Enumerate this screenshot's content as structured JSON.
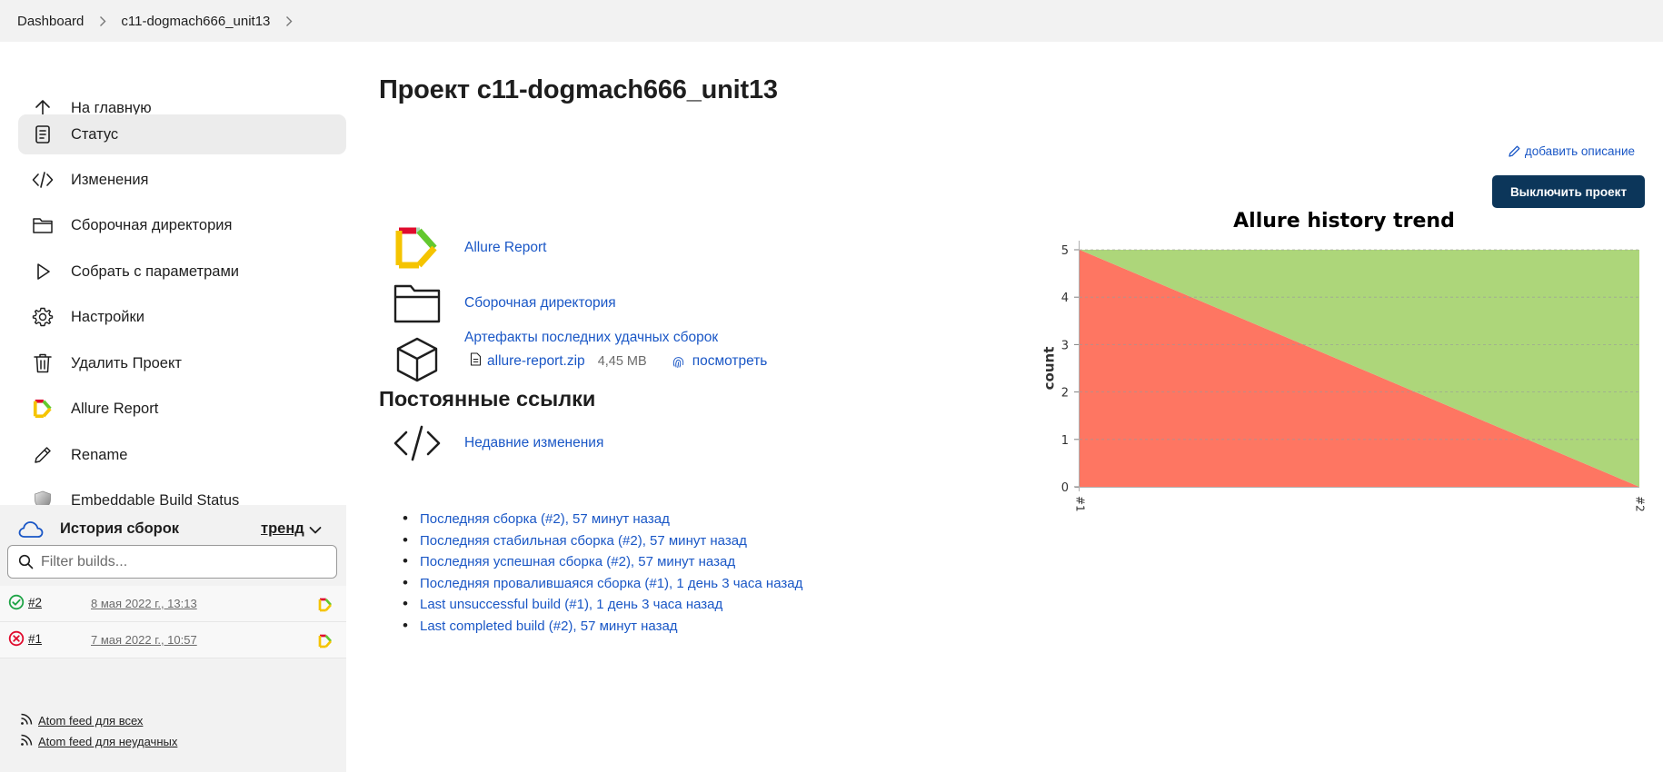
{
  "breadcrumb": {
    "items": [
      "Dashboard",
      "c11-dogmach666_unit13"
    ]
  },
  "sidebar": {
    "items": [
      {
        "label": "На главную",
        "icon": "arrow-up-icon"
      },
      {
        "label": "Статус",
        "icon": "document-icon",
        "active": true
      },
      {
        "label": "Изменения",
        "icon": "code-icon"
      },
      {
        "label": "Сборочная директория",
        "icon": "folder-icon"
      },
      {
        "label": "Собрать с параметрами",
        "icon": "play-icon"
      },
      {
        "label": "Настройки",
        "icon": "gear-icon"
      },
      {
        "label": "Удалить Проект",
        "icon": "trash-icon"
      },
      {
        "label": "Allure Report",
        "icon": "allure-icon"
      },
      {
        "label": "Rename",
        "icon": "pencil-icon"
      },
      {
        "label": "Embeddable Build Status",
        "icon": "shield-icon"
      }
    ]
  },
  "history": {
    "title": "История сборок",
    "trend_label": "тренд",
    "filter_placeholder": "Filter builds...",
    "builds": [
      {
        "number": "#2",
        "date": "8 мая 2022 г., 13:13",
        "status": "success"
      },
      {
        "number": "#1",
        "date": "7 мая 2022 г., 10:57",
        "status": "failed"
      }
    ],
    "feeds": [
      "Atom feed для всех",
      "Atom feed для неудачных"
    ]
  },
  "main": {
    "title": "Проект c11-dogmach666_unit13",
    "add_description": "добавить описание",
    "disable_button": "Выключить проект",
    "links": {
      "allure": "Allure Report",
      "workspace": "Сборочная директория",
      "artifacts": "Артефакты последних удачных сборок",
      "recent_changes": "Недавние изменения"
    },
    "artifact": {
      "file": "allure-report.zip",
      "size": "4,45 MB",
      "view": "посмотреть"
    },
    "permalinks_title": "Постоянные ссылки",
    "permalinks": [
      "Последняя сборка (#2), 57 минут назад",
      "Последняя стабильная сборка (#2), 57 минут назад",
      "Последняя успешная сборка (#2), 57 минут назад",
      "Последняя провалившаяся сборка (#1), 1 день 3 часа назад",
      "Last unsuccessful build (#1), 1 день 3 часа назад",
      "Last completed build (#2), 57 минут назад"
    ]
  },
  "colors": {
    "accent": "#1a57c6",
    "primary_button": "#0c365a",
    "passed": "#add67a",
    "failed": "#fe7662",
    "success_icon": "#1ea446",
    "failed_icon": "#e00b2d"
  },
  "chart_data": {
    "type": "area",
    "title": "Allure history trend",
    "ylabel": "count",
    "xlabel": "",
    "categories": [
      "#1",
      "#2"
    ],
    "series": [
      {
        "values": [
          5,
          0
        ],
        "color": "#fe7662"
      },
      {
        "values": [
          0,
          5
        ],
        "color": "#add67a"
      }
    ],
    "stacked": true,
    "ylim": [
      0,
      5
    ],
    "yticks": [
      0,
      1,
      2,
      3,
      4,
      5
    ],
    "grid": true
  }
}
